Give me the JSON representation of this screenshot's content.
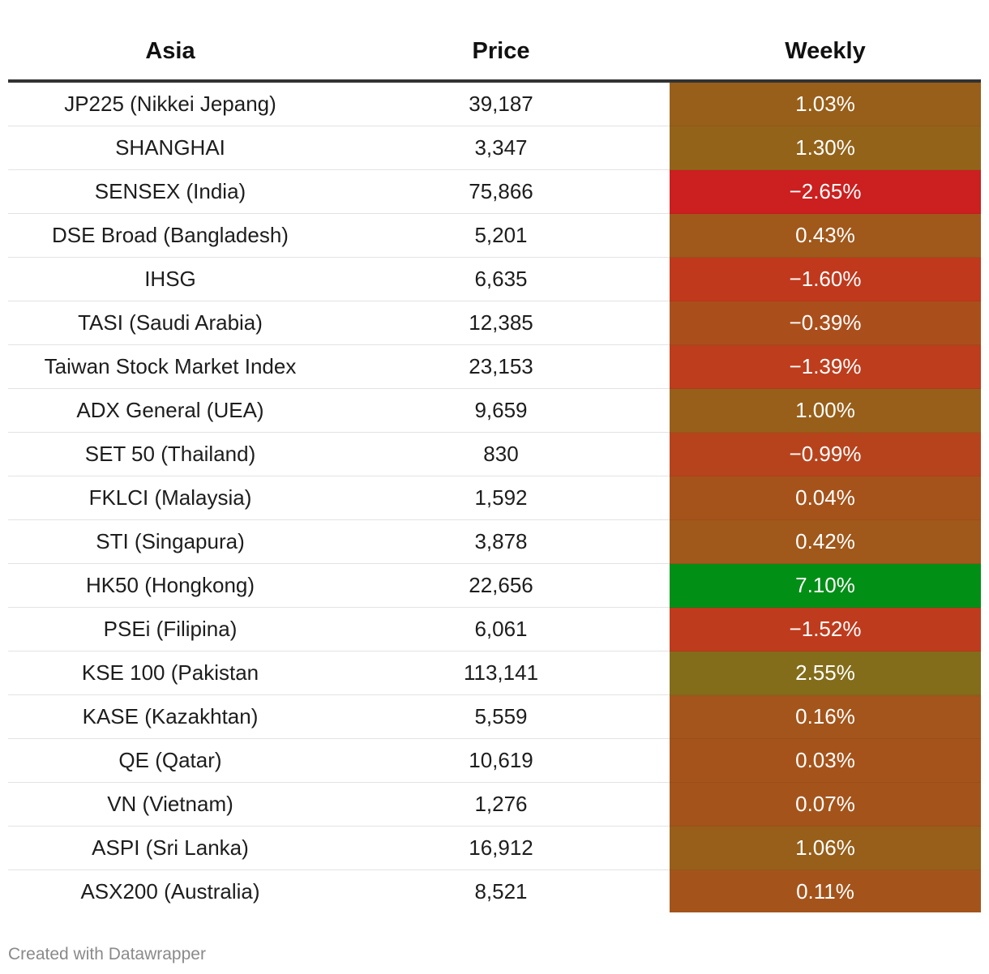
{
  "chart_data": {
    "type": "table",
    "columns": [
      "Asia",
      "Price",
      "Weekly"
    ],
    "rows": [
      {
        "name": "JP225 (Nikkei Jepang)",
        "price": "39,187",
        "weekly": "1.03%",
        "weekly_value": 1.03,
        "color": "#985f1a"
      },
      {
        "name": "SHANGHAI",
        "price": "3,347",
        "weekly": "1.30%",
        "weekly_value": 1.3,
        "color": "#94631a"
      },
      {
        "name": "SENSEX (India)",
        "price": "75,866",
        "weekly": "−2.65%",
        "weekly_value": -2.65,
        "color": "#cc1f1f"
      },
      {
        "name": "DSE Broad (Bangladesh)",
        "price": "5,201",
        "weekly": "0.43%",
        "weekly_value": 0.43,
        "color": "#a0581b"
      },
      {
        "name": "IHSG",
        "price": "6,635",
        "weekly": "−1.60%",
        "weekly_value": -1.6,
        "color": "#c0391d"
      },
      {
        "name": "TASI (Saudi Arabia)",
        "price": "12,385",
        "weekly": "−0.39%",
        "weekly_value": -0.39,
        "color": "#aa4f1c"
      },
      {
        "name": "Taiwan Stock Market Index",
        "price": "23,153",
        "weekly": "−1.39%",
        "weekly_value": -1.39,
        "color": "#bd3d1d"
      },
      {
        "name": "ADX General (UEA)",
        "price": "9,659",
        "weekly": "1.00%",
        "weekly_value": 1.0,
        "color": "#985f1a"
      },
      {
        "name": "SET 50 (Thailand)",
        "price": "830",
        "weekly": "−0.99%",
        "weekly_value": -0.99,
        "color": "#b7431d"
      },
      {
        "name": "FKLCI (Malaysia)",
        "price": "1,592",
        "weekly": "0.04%",
        "weekly_value": 0.04,
        "color": "#a5531b"
      },
      {
        "name": "STI (Singapura)",
        "price": "3,878",
        "weekly": "0.42%",
        "weekly_value": 0.42,
        "color": "#a0581b"
      },
      {
        "name": "HK50 (Hongkong)",
        "price": "22,656",
        "weekly": "7.10%",
        "weekly_value": 7.1,
        "color": "#028f16"
      },
      {
        "name": "PSEi (Filipina)",
        "price": "6,061",
        "weekly": "−1.52%",
        "weekly_value": -1.52,
        "color": "#bf3b1d"
      },
      {
        "name": "KSE 100 (Pakistan",
        "price": "113,141",
        "weekly": "2.55%",
        "weekly_value": 2.55,
        "color": "#836d1b"
      },
      {
        "name": "KASE (Kazakhtan)",
        "price": "5,559",
        "weekly": "0.16%",
        "weekly_value": 0.16,
        "color": "#a3551b"
      },
      {
        "name": "QE (Qatar)",
        "price": "10,619",
        "weekly": "0.03%",
        "weekly_value": 0.03,
        "color": "#a5531b"
      },
      {
        "name": "VN (Vietnam)",
        "price": "1,276",
        "weekly": "0.07%",
        "weekly_value": 0.07,
        "color": "#a4541b"
      },
      {
        "name": "ASPI (Sri Lanka)",
        "price": "16,912",
        "weekly": "1.06%",
        "weekly_value": 1.06,
        "color": "#975f1a"
      },
      {
        "name": "ASX200 (Australia)",
        "price": "8,521",
        "weekly": "0.11%",
        "weekly_value": 0.11,
        "color": "#a4541b"
      }
    ]
  },
  "footer": {
    "credit": "Created with Datawrapper"
  }
}
